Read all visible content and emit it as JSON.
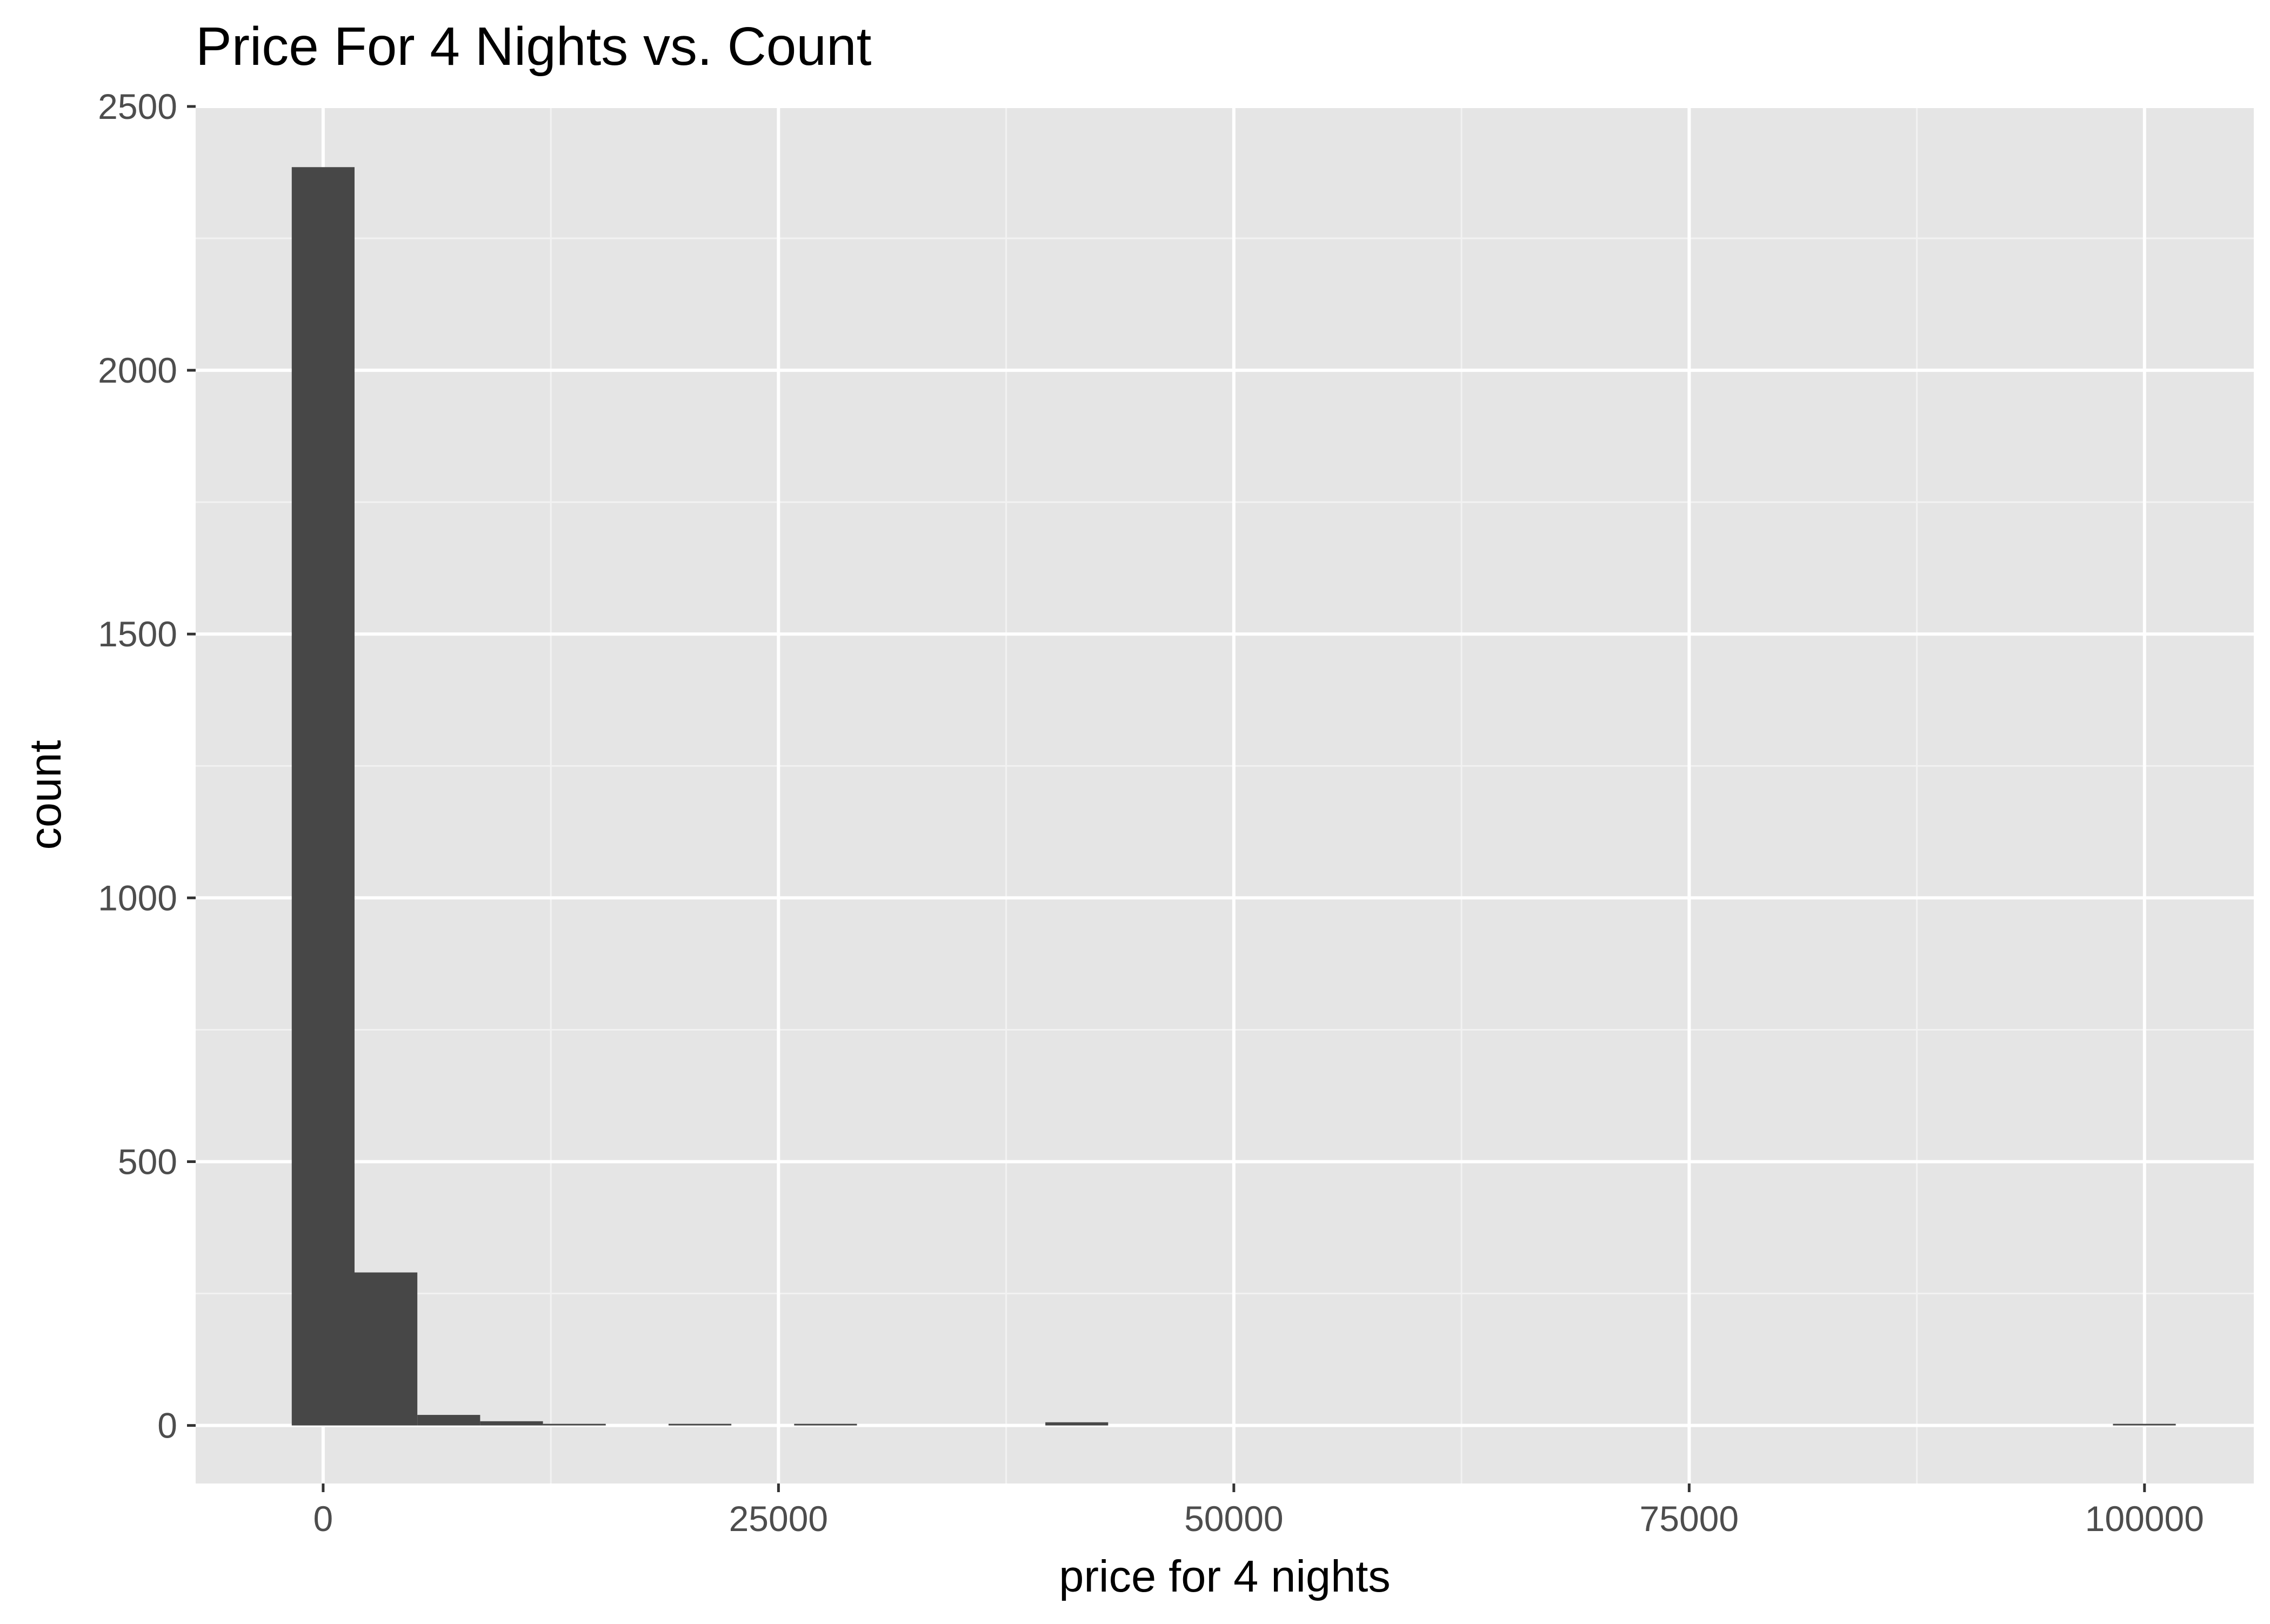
{
  "chart_data": {
    "type": "bar",
    "title": "Price For 4 Nights vs. Count",
    "xlabel": "price for 4 nights",
    "ylabel": "count",
    "xlim": [
      -7000,
      106000
    ],
    "ylim": [
      -110,
      2500
    ],
    "x_ticks": [
      0,
      25000,
      50000,
      75000,
      100000
    ],
    "x_tick_labels": [
      "0",
      "25000",
      "50000",
      "75000",
      "100000"
    ],
    "x_minor_ticks": [
      12500,
      37500,
      62500,
      87500
    ],
    "y_ticks": [
      0,
      500,
      1000,
      1500,
      2000,
      2500
    ],
    "y_tick_labels": [
      "0",
      "500",
      "1000",
      "1500",
      "2000",
      "2500"
    ],
    "y_minor_ticks": [
      250,
      750,
      1250,
      1750,
      2250
    ],
    "grid": true,
    "legend": "none",
    "bin_width": 3448,
    "bins": [
      {
        "x_start": -1724,
        "x_end": 1724,
        "count": 2385
      },
      {
        "x_start": 1724,
        "x_end": 5172,
        "count": 290
      },
      {
        "x_start": 5172,
        "x_end": 8620,
        "count": 20
      },
      {
        "x_start": 8620,
        "x_end": 12068,
        "count": 8
      },
      {
        "x_start": 12068,
        "x_end": 15516,
        "count": 1
      },
      {
        "x_start": 18964,
        "x_end": 22412,
        "count": 2
      },
      {
        "x_start": 25860,
        "x_end": 29308,
        "count": 2
      },
      {
        "x_start": 39652,
        "x_end": 43100,
        "count": 6
      },
      {
        "x_start": 98268,
        "x_end": 101716,
        "count": 2
      }
    ],
    "colors": {
      "panel_background": "#e5e5e5",
      "grid_major": "#ffffff",
      "grid_minor": "#f2f2f2",
      "bar_fill": "#474747",
      "tick_mark": "#333333",
      "tick_label": "#4d4d4d",
      "text": "#000000"
    }
  }
}
